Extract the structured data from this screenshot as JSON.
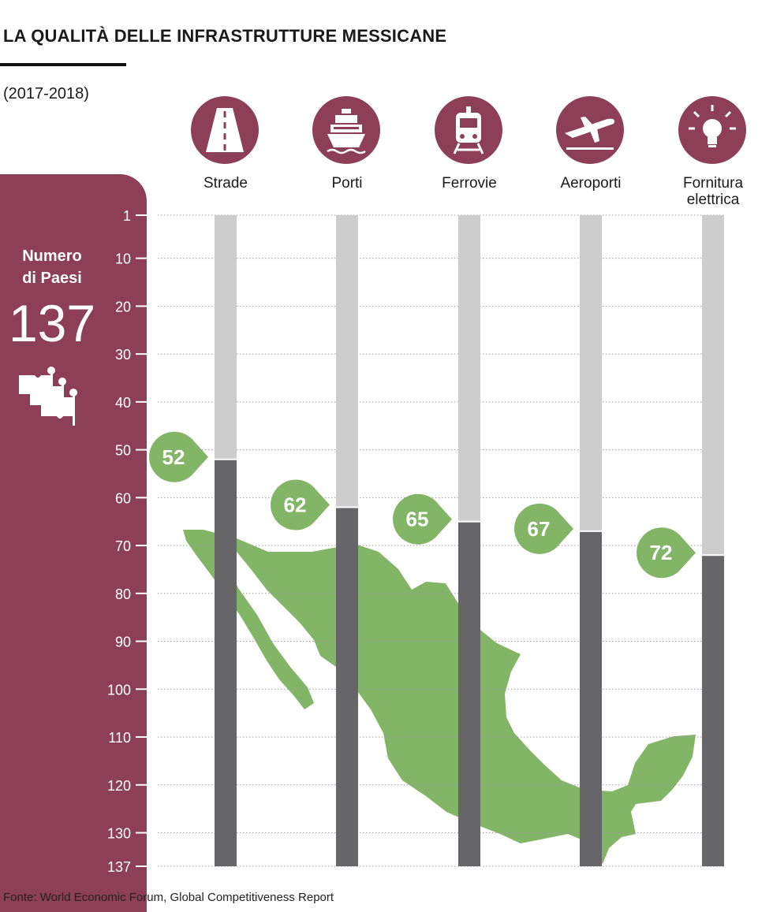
{
  "header": {
    "title": "LA QUALITÀ DELLE INFRASTRUTTURE MESSICANE",
    "subtitle": "(2017-2018)"
  },
  "panel": {
    "label_line1": "Numero",
    "label_line2": "di Paesi",
    "count": "137"
  },
  "footer": {
    "source": "Fonte: World Economic Forum, Global Competitiveness Report"
  },
  "colors": {
    "panel": "#8c3f57",
    "badge": "#82b666",
    "bar_dark": "#666669",
    "bar_light": "#cdcdcd",
    "map": "#82b666"
  },
  "chart_data": {
    "type": "bar",
    "categories": [
      "Strade",
      "Porti",
      "Ferrovie",
      "Aeroporti",
      "Fornitura elettrica"
    ],
    "category_lines": [
      [
        "Strade"
      ],
      [
        "Porti"
      ],
      [
        "Ferrovie"
      ],
      [
        "Aeroporti"
      ],
      [
        "Fornitura",
        "elettrica"
      ]
    ],
    "icons": [
      "road-icon",
      "ship-icon",
      "train-icon",
      "airplane-icon",
      "lightbulb-icon"
    ],
    "values": [
      52,
      62,
      65,
      67,
      72
    ],
    "ylim": [
      1,
      137
    ],
    "yaxis_inverted": true,
    "yticks": [
      1,
      10,
      20,
      30,
      40,
      50,
      60,
      70,
      80,
      90,
      100,
      110,
      120,
      130,
      137
    ],
    "grid": true
  }
}
